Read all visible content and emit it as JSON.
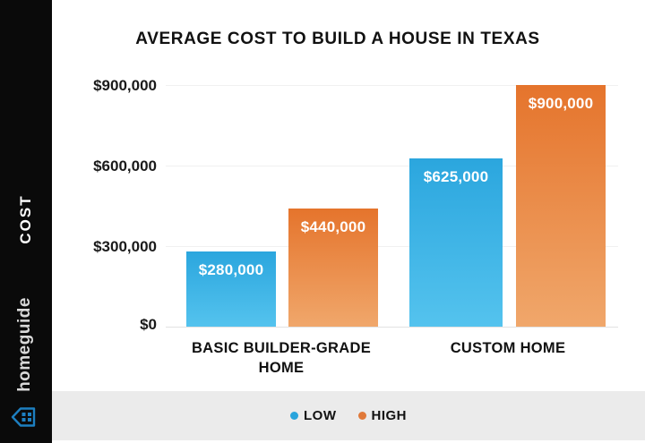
{
  "sidebar": {
    "cost_label": "COST",
    "brand": "homeguide",
    "colors": {
      "background": "#0a0a0a",
      "cost_text": "#ffffff",
      "brand_text": "#d9d9d9",
      "house_icon_blue": "#1d7fc0"
    }
  },
  "chart_data": {
    "type": "bar",
    "title": "AVERAGE COST TO BUILD A HOUSE IN TEXAS",
    "categories": [
      "BASIC BUILDER-GRADE HOME",
      "CUSTOM HOME"
    ],
    "series": [
      {
        "name": "LOW",
        "color": "#2ba6de",
        "values": [
          280000,
          625000
        ],
        "labels": [
          "$280,000",
          "$625,000"
        ]
      },
      {
        "name": "HIGH",
        "color": "#e5742c",
        "values": [
          440000,
          900000
        ],
        "labels": [
          "$440,000",
          "$900,000"
        ]
      }
    ],
    "y_ticks": [
      "$0",
      "$300,000",
      "$600,000",
      "$900,000"
    ],
    "ylim": [
      0,
      900000
    ],
    "grid": true,
    "legend_position": "bottom",
    "bar_label_color": "#ffffff",
    "gridline_color": "#f0f0f0"
  },
  "legend": {
    "items": [
      {
        "label": "LOW",
        "color": "#29a4dc"
      },
      {
        "label": "HIGH",
        "color": "#e0793a"
      }
    ],
    "strip_color": "#ebebeb"
  }
}
